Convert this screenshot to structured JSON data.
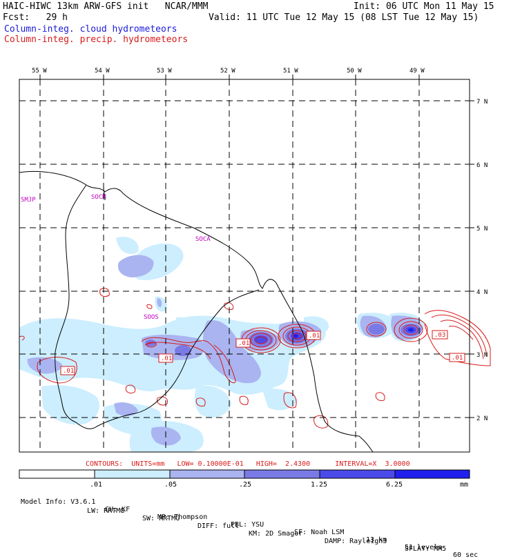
{
  "header": {
    "title_left": "HAIC-HIWC 13km ARW-GFS init   NCAR/MMM",
    "init": "Init: 06 UTC Mon 11 May 15",
    "fcst": "Fcst:   29 h",
    "valid": "Valid: 11 UTC Tue 12 May 15 (08 LST Tue 12 May 15)",
    "legend_cloud": "Column-integ. cloud hydrometeors",
    "legend_precip": "Column-integ. precip. hydrometeors"
  },
  "map": {
    "lon_labels": [
      "55 W",
      "54 W",
      "53 W",
      "52 W",
      "51 W",
      "50 W",
      "49 W"
    ],
    "lat_labels": [
      "7 N",
      "6 N",
      "5 N",
      "4 N",
      "3 N",
      "2 N"
    ],
    "stations": [
      "SMJP",
      "SOCM",
      "SOCA",
      "SOOS"
    ],
    "contour_labels": [
      ".01",
      ".01",
      ".01",
      ".01",
      ".03",
      ".01"
    ]
  },
  "contours_line": "CONTOURS:  UNITS=mm   LOW= 0.10000E-01   HIGH=  2.4300      INTERVAL=X  3.0000",
  "colorbar": {
    "tick_labels": [
      ".01",
      ".05",
      ".25",
      "1.25",
      "6.25",
      "mm"
    ],
    "colors": [
      "#ffffff",
      "#cceeff",
      "#aab4f0",
      "#7a7ae6",
      "#4b4bea",
      "#2020ee"
    ]
  },
  "footer": {
    "line1": [
      "Model Info: V3.6.1",
      "CU: KF",
      "MP: Thompson",
      "PBL: YSU",
      "SF: Noah LSM",
      "13 km",
      "51 levels",
      "60 sec"
    ],
    "line2": [
      "LW: RRTMG",
      "SW: RRTMG",
      "DIFF: full",
      "KM: 2D Smagor",
      "DAMP: Rayleigh3",
      "SFLAY: MM5"
    ]
  }
}
